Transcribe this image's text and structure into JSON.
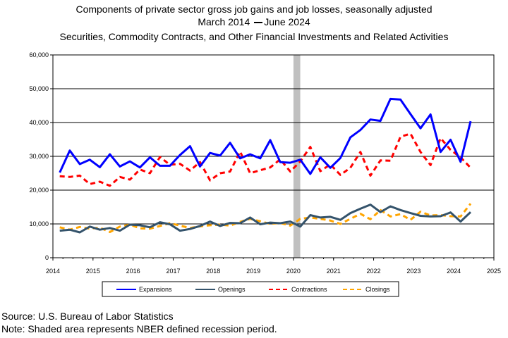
{
  "header": {
    "line1": "Components of private sector gross job gains and job losses, seasonally adjusted",
    "line2_start": "March 2014",
    "line2_end": "June 2024",
    "line3": "Securities, Commodity Contracts, and Other Financial Investments and Related Activities"
  },
  "footer": {
    "source": "Source: U.S. Bureau of Labor Statistics",
    "note": "Note: Shaded area represents NBER defined recession period."
  },
  "colors": {
    "expansions": "#0000ff",
    "openings": "#34536b",
    "contractions": "#ff0000",
    "closings": "#ffa500",
    "recession": "#c0c0c0"
  },
  "chart_data": {
    "type": "line",
    "title": "Components of private sector gross job gains and job losses, seasonally adjusted",
    "xlabel": "",
    "ylabel": "",
    "xlim": [
      2014,
      2025
    ],
    "ylim": [
      0,
      60000
    ],
    "y_ticks": [
      "0",
      "10,000",
      "20,000",
      "30,000",
      "40,000",
      "50,000",
      "60,000"
    ],
    "x_ticks": [
      "2014",
      "2015",
      "2016",
      "2017",
      "2018",
      "2019",
      "2020",
      "2021",
      "2022",
      "2023",
      "2024",
      "2025"
    ],
    "grid": "horizontal",
    "legend_position": "bottom",
    "recession": {
      "start": 2020.0,
      "end": 2020.17
    },
    "x": [
      2014.17,
      2014.42,
      2014.67,
      2014.92,
      2015.17,
      2015.42,
      2015.67,
      2015.92,
      2016.17,
      2016.42,
      2016.67,
      2016.92,
      2017.17,
      2017.42,
      2017.67,
      2017.92,
      2018.17,
      2018.42,
      2018.67,
      2018.92,
      2019.17,
      2019.42,
      2019.67,
      2019.92,
      2020.17,
      2020.42,
      2020.67,
      2020.92,
      2021.17,
      2021.42,
      2021.67,
      2021.92,
      2022.17,
      2022.42,
      2022.67,
      2022.92,
      2023.17,
      2023.42,
      2023.67,
      2023.92,
      2024.17,
      2024.42
    ],
    "series": [
      {
        "name": "Expansions",
        "style": "solid",
        "values": [
          25200,
          31700,
          27700,
          29000,
          26800,
          30600,
          27000,
          28500,
          26700,
          29700,
          27200,
          27200,
          30400,
          33000,
          27000,
          31000,
          30200,
          34000,
          29400,
          30600,
          29400,
          34800,
          28300,
          28100,
          29000,
          24800,
          29700,
          26600,
          29500,
          35600,
          37800,
          40900,
          40500,
          47000,
          46800,
          42500,
          38300,
          42400,
          31300,
          34900,
          28400,
          40400
        ]
      },
      {
        "name": "Openings",
        "style": "solid",
        "values": [
          8000,
          8300,
          7500,
          9200,
          8300,
          8800,
          8000,
          9800,
          9600,
          9000,
          10500,
          9900,
          8000,
          8500,
          9400,
          10700,
          9400,
          10300,
          10200,
          11900,
          9900,
          10400,
          10200,
          10700,
          9200,
          12600,
          11900,
          12100,
          11200,
          13200,
          14500,
          15700,
          13500,
          15200,
          14100,
          13200,
          12400,
          12200,
          12300,
          13400,
          10700,
          13500
        ]
      },
      {
        "name": "Contractions",
        "style": "dashed",
        "values": [
          24100,
          23900,
          24300,
          21800,
          22500,
          21300,
          23900,
          23100,
          26100,
          25000,
          29800,
          27500,
          27800,
          25800,
          28300,
          22900,
          25000,
          25500,
          31400,
          25000,
          25900,
          26700,
          29100,
          25500,
          28500,
          32800,
          25600,
          27600,
          24500,
          26600,
          31300,
          24300,
          28800,
          28700,
          35800,
          36700,
          31300,
          27400,
          35400,
          31900,
          29700,
          26600
        ]
      },
      {
        "name": "Closings",
        "style": "dashed",
        "values": [
          9000,
          8300,
          9100,
          8600,
          8900,
          7600,
          9200,
          9800,
          8700,
          8600,
          9400,
          10200,
          9500,
          8800,
          9300,
          9600,
          9800,
          9500,
          10600,
          11500,
          10800,
          10000,
          10300,
          9500,
          11500,
          11900,
          11500,
          11000,
          10000,
          11500,
          13000,
          11400,
          14100,
          12200,
          12900,
          11200,
          13600,
          12500,
          12600,
          12300,
          12200,
          16000
        ]
      }
    ]
  }
}
